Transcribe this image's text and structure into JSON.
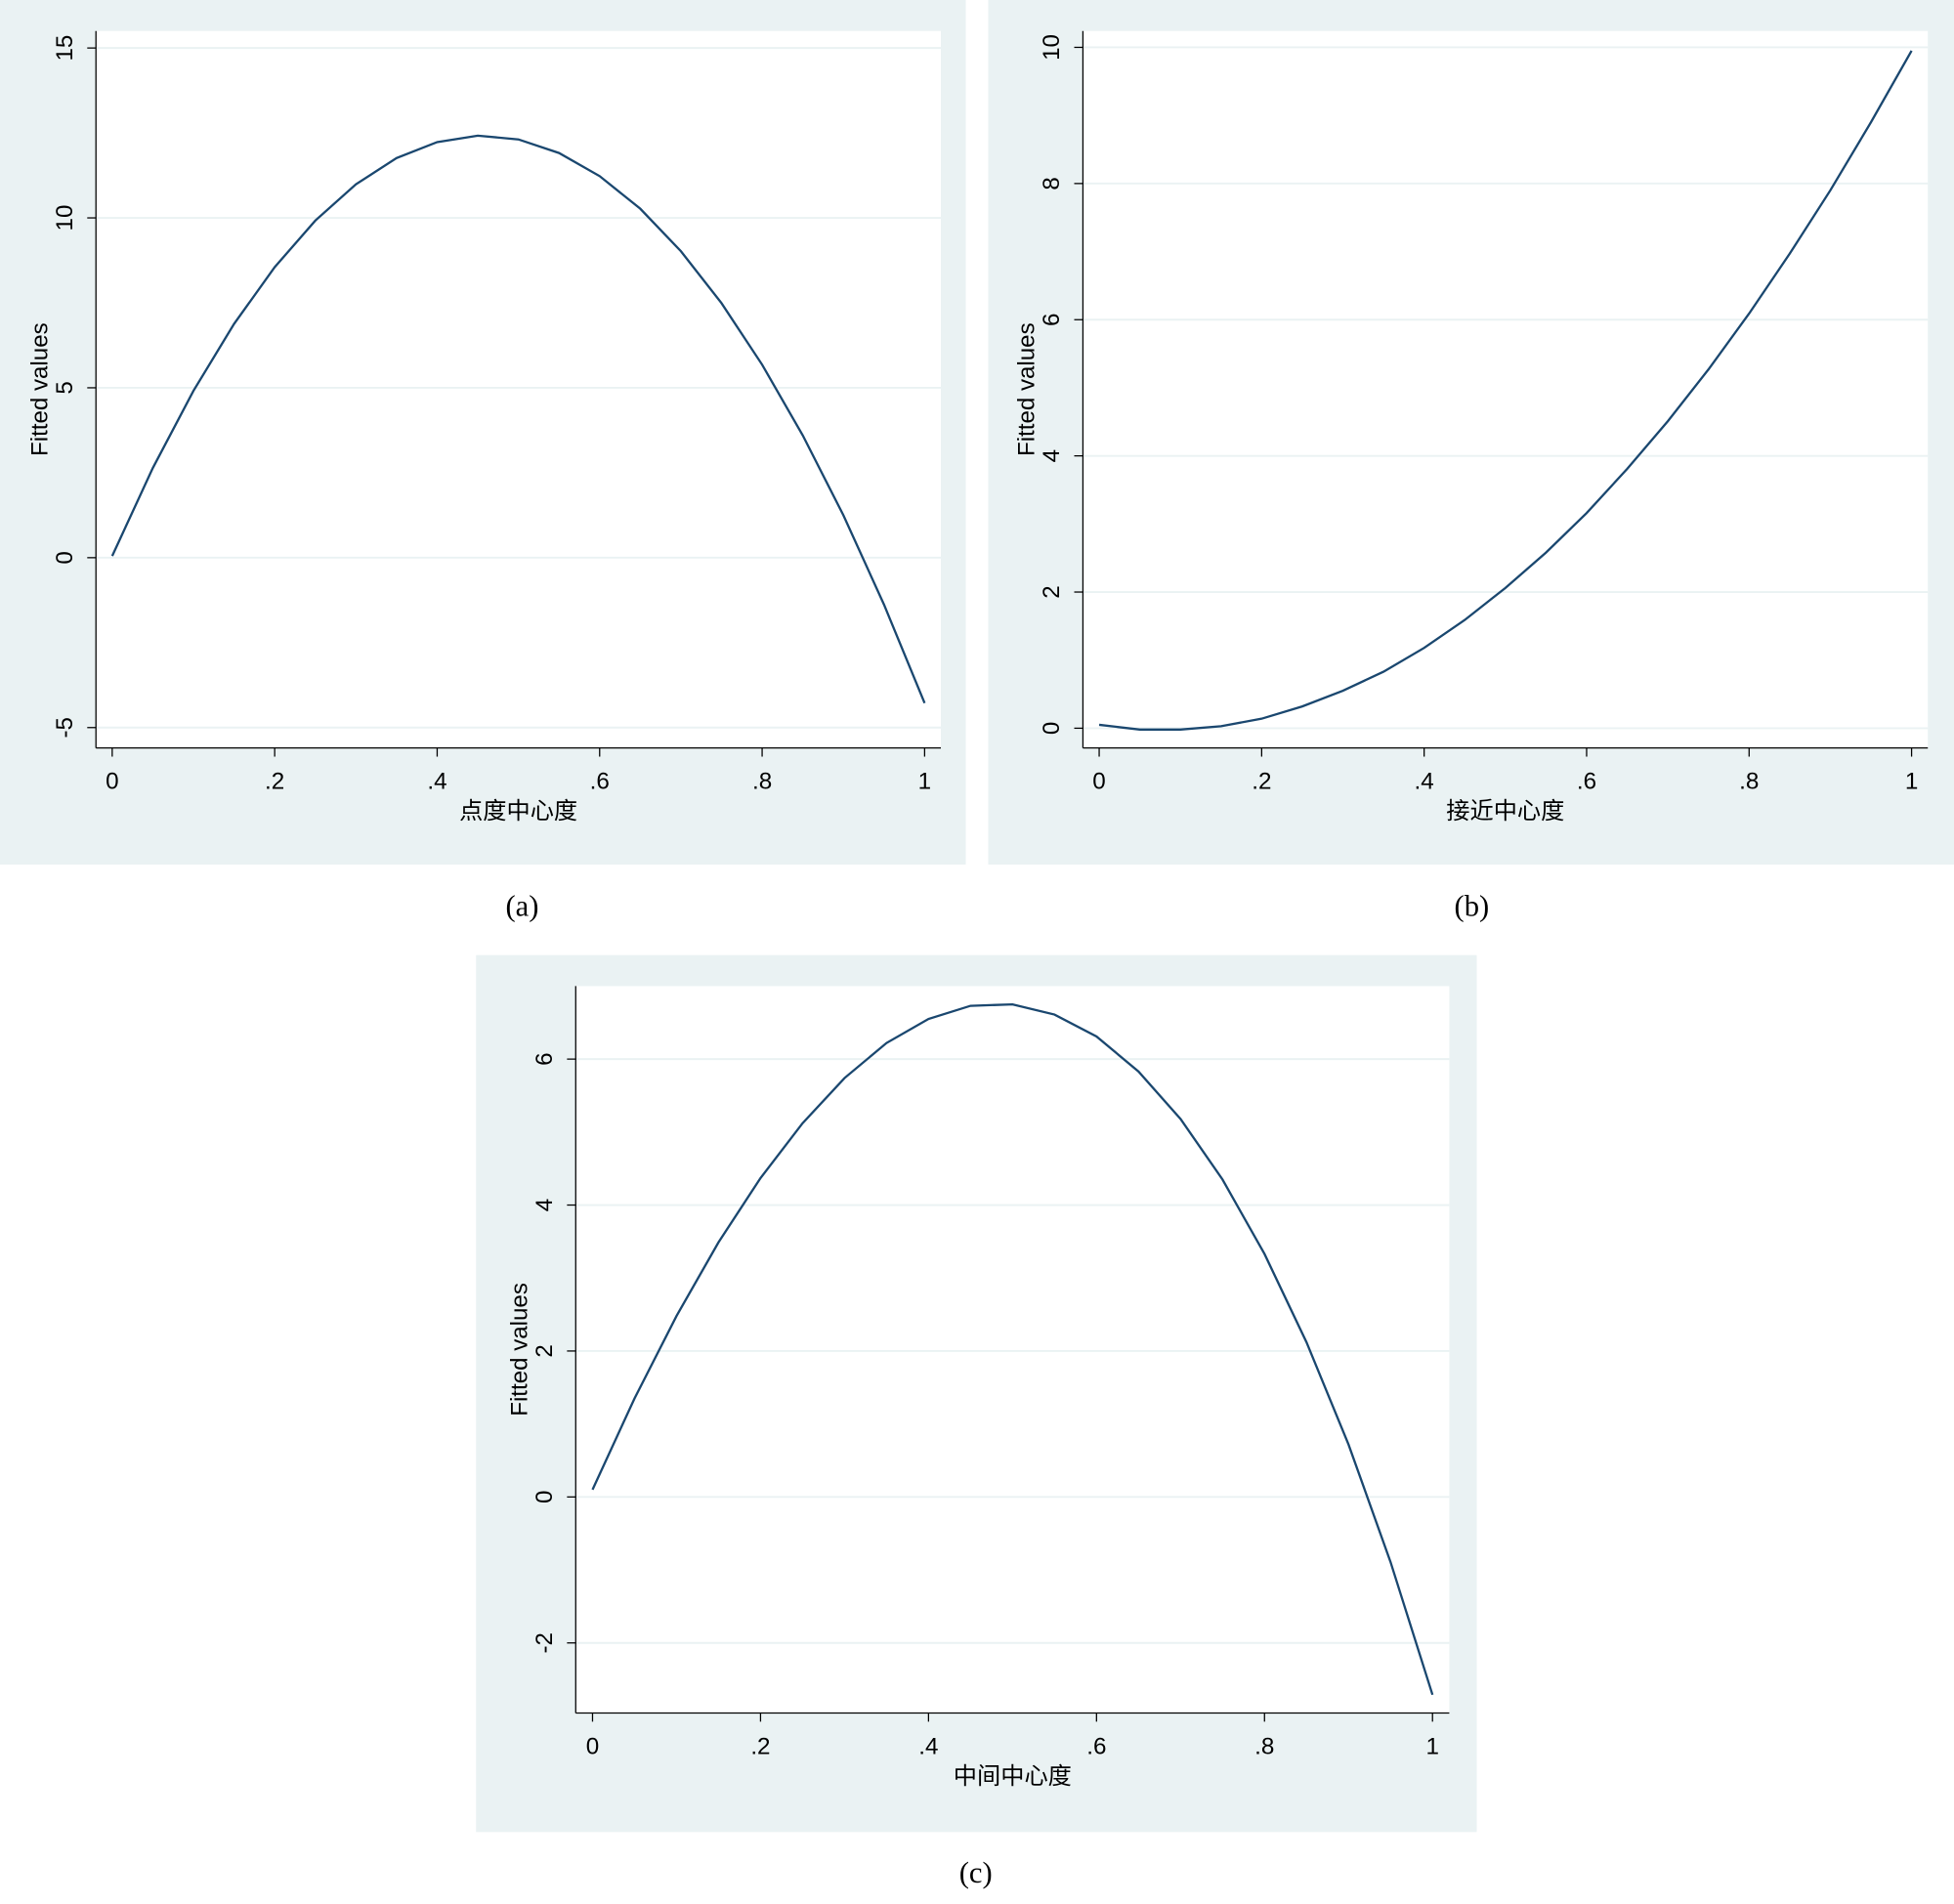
{
  "chart_data": [
    {
      "type": "line",
      "caption": "(a)",
      "xlabel": "点度中心度",
      "ylabel": "Fitted values",
      "x": [
        0,
        0.05,
        0.1,
        0.15,
        0.2,
        0.25,
        0.3,
        0.35,
        0.4,
        0.45,
        0.5,
        0.55,
        0.6,
        0.65,
        0.7,
        0.75,
        0.8,
        0.85,
        0.9,
        0.95,
        1
      ],
      "series": [
        {
          "name": "Fitted values",
          "color": "#1a476f",
          "values": [
            0.05,
            2.64,
            4.91,
            6.88,
            8.55,
            9.92,
            10.99,
            11.76,
            12.23,
            12.42,
            12.31,
            11.91,
            11.23,
            10.27,
            9.02,
            7.49,
            5.68,
            3.6,
            1.25,
            -1.38,
            -4.28
          ]
        }
      ],
      "xlim": [
        -0.02,
        1.02
      ],
      "ylim": [
        -5.6,
        15.5
      ],
      "xticks": [
        0,
        {
          "value": 0.2,
          "label": ".2"
        },
        {
          "value": 0.4,
          "label": ".4"
        },
        {
          "value": 0.6,
          "label": ".6"
        },
        {
          "value": 0.8,
          "label": ".8"
        },
        1
      ],
      "yticks": [
        -5,
        0,
        5,
        10,
        15
      ],
      "grid": true
    },
    {
      "type": "line",
      "caption": "(b)",
      "xlabel": "接近中心度",
      "ylabel": "Fitted values",
      "x": [
        0,
        0.05,
        0.1,
        0.15,
        0.2,
        0.25,
        0.3,
        0.35,
        0.4,
        0.45,
        0.5,
        0.55,
        0.6,
        0.65,
        0.7,
        0.75,
        0.8,
        0.85,
        0.9,
        0.95,
        1
      ],
      "series": [
        {
          "name": "Fitted values",
          "color": "#1a476f",
          "values": [
            0.05,
            -0.02,
            -0.02,
            0.03,
            0.14,
            0.32,
            0.55,
            0.83,
            1.18,
            1.59,
            2.06,
            2.58,
            3.16,
            3.81,
            4.51,
            5.27,
            6.09,
            6.97,
            7.9,
            8.9,
            9.95
          ]
        }
      ],
      "xlim": [
        -0.02,
        1.02
      ],
      "ylim": [
        -0.29,
        10.24
      ],
      "xticks": [
        0,
        {
          "value": 0.2,
          "label": ".2"
        },
        {
          "value": 0.4,
          "label": ".4"
        },
        {
          "value": 0.6,
          "label": ".6"
        },
        {
          "value": 0.8,
          "label": ".8"
        },
        1
      ],
      "yticks": [
        0,
        2,
        4,
        6,
        8,
        10
      ],
      "grid": true
    },
    {
      "type": "line",
      "caption": "(c)",
      "xlabel": "中间中心度",
      "ylabel": "Fitted values",
      "x": [
        0,
        0.05,
        0.1,
        0.15,
        0.2,
        0.25,
        0.3,
        0.35,
        0.4,
        0.45,
        0.5,
        0.55,
        0.6,
        0.65,
        0.7,
        0.75,
        0.8,
        0.85,
        0.9,
        0.95,
        1
      ],
      "series": [
        {
          "name": "Fitted values",
          "color": "#1a476f",
          "values": [
            0.1,
            1.35,
            2.48,
            3.49,
            4.37,
            5.12,
            5.74,
            6.22,
            6.55,
            6.73,
            6.75,
            6.61,
            6.31,
            5.83,
            5.18,
            4.35,
            3.33,
            2.12,
            0.72,
            -0.89,
            -2.71
          ]
        }
      ],
      "xlim": [
        -0.02,
        1.02
      ],
      "ylim": [
        -2.96,
        7.0
      ],
      "xticks": [
        0,
        {
          "value": 0.2,
          "label": ".2"
        },
        {
          "value": 0.4,
          "label": ".4"
        },
        {
          "value": 0.6,
          "label": ".6"
        },
        {
          "value": 0.8,
          "label": ".8"
        },
        1
      ],
      "yticks": [
        -2,
        0,
        2,
        4,
        6
      ],
      "grid": true
    }
  ]
}
